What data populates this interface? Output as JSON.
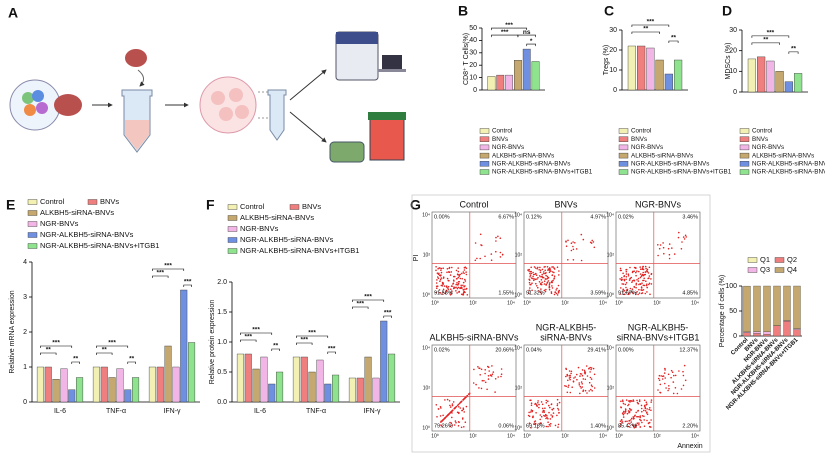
{
  "panels": [
    "A",
    "B",
    "C",
    "D",
    "E",
    "F",
    "G"
  ],
  "chart_data": [
    {
      "type": "bar",
      "ylabel": "CD8⁺ T Cells(%)",
      "ylim": [
        0,
        50
      ],
      "yticks": [
        0,
        10,
        20,
        30,
        40,
        50
      ],
      "series": [
        {
          "name": "Control",
          "color": "#f3f0b3",
          "values": [
            11
          ]
        },
        {
          "name": "BNVs",
          "color": "#ef7f7f",
          "values": [
            12
          ]
        },
        {
          "name": "NGR-BNVs",
          "color": "#f2b6e6",
          "values": [
            12
          ]
        },
        {
          "name": "ALKBH5-siRNA-BNVs",
          "color": "#c4a86f",
          "values": [
            24
          ]
        },
        {
          "name": "NGR-ALKBH5-siRNA-BNVs",
          "color": "#6f8fe0",
          "values": [
            33
          ]
        },
        {
          "name": "NGR-ALKBH5-siRNA-BNVs+ITGB1",
          "color": "#8fe38f",
          "values": [
            23
          ]
        }
      ],
      "annotations": [
        "***",
        "***",
        "ns",
        "*"
      ]
    },
    {
      "type": "bar",
      "ylabel": "Tregs (%)",
      "ylim": [
        0,
        30
      ],
      "yticks": [
        0,
        10,
        20,
        30
      ],
      "series": [
        {
          "name": "Control",
          "color": "#f3f0b3",
          "values": [
            22
          ]
        },
        {
          "name": "BNVs",
          "color": "#ef7f7f",
          "values": [
            22
          ]
        },
        {
          "name": "NGR-BNVs",
          "color": "#f2b6e6",
          "values": [
            21
          ]
        },
        {
          "name": "ALKBH5-siRNA-BNVs",
          "color": "#c4a86f",
          "values": [
            15
          ]
        },
        {
          "name": "NGR-ALKBH5-siRNA-BNVs",
          "color": "#6f8fe0",
          "values": [
            8
          ]
        },
        {
          "name": "NGR-ALKBH5-siRNA-BNVs+ITGB1",
          "color": "#8fe38f",
          "values": [
            15
          ]
        }
      ],
      "annotations": [
        "***",
        "**",
        "**"
      ]
    },
    {
      "type": "bar",
      "ylabel": "MDSCs (%)",
      "ylim": [
        0,
        30
      ],
      "yticks": [
        0,
        10,
        20,
        30
      ],
      "series": [
        {
          "name": "Control",
          "color": "#f3f0b3",
          "values": [
            16
          ]
        },
        {
          "name": "BNVs",
          "color": "#ef7f7f",
          "values": [
            17
          ]
        },
        {
          "name": "NGR-BNVs",
          "color": "#f2b6e6",
          "values": [
            15
          ]
        },
        {
          "name": "ALKBH5-siRNA-BNVs",
          "color": "#c4a86f",
          "values": [
            10
          ]
        },
        {
          "name": "NGR-ALKBH5-siRNA-BNVs",
          "color": "#6f8fe0",
          "values": [
            5
          ]
        },
        {
          "name": "NGR-ALKBH5-siRNA-BNVs+ITGB1",
          "color": "#8fe38f",
          "values": [
            9
          ]
        }
      ],
      "annotations": [
        "***",
        "**",
        "**"
      ]
    },
    {
      "type": "bar",
      "ylabel": "Relative mRNA expression",
      "ylim": [
        0,
        4
      ],
      "yticks": [
        0,
        1,
        2,
        3,
        4
      ],
      "categories": [
        "IL-6",
        "TNF-α",
        "IFN-γ"
      ],
      "series": [
        {
          "name": "Control",
          "color": "#f3f0b3",
          "values": [
            1.0,
            1.0,
            1.0
          ]
        },
        {
          "name": "BNVs",
          "color": "#ef7f7f",
          "values": [
            1.0,
            1.0,
            1.0
          ]
        },
        {
          "name": "ALKBH5-siRNA-BNVs",
          "color": "#c4a86f",
          "values": [
            0.65,
            0.7,
            1.6
          ]
        },
        {
          "name": "NGR-BNVs",
          "color": "#f2b6e6",
          "values": [
            0.95,
            0.95,
            1.0
          ]
        },
        {
          "name": "NGR-ALKBH5-siRNA-BNVs",
          "color": "#6f8fe0",
          "values": [
            0.35,
            0.35,
            3.2
          ]
        },
        {
          "name": "NGR-ALKBH5-siRNA-BNVs+ITGB1",
          "color": "#8fe38f",
          "values": [
            0.7,
            0.7,
            1.7
          ]
        }
      ],
      "annotations": [
        "***",
        "**",
        "**",
        "***",
        "**",
        "**",
        "***",
        "***",
        "***"
      ]
    },
    {
      "type": "bar",
      "ylabel": "Relative protein expression",
      "ylim": [
        0,
        2
      ],
      "yticks": [
        {
          "value": 0,
          "label": "0.0"
        },
        0.5,
        {
          "value": 1,
          "label": "1.0"
        },
        1.5,
        {
          "value": 2,
          "label": "2.0"
        }
      ],
      "categories": [
        "IL-6",
        "TNF-α",
        "IFN-γ"
      ],
      "series": [
        {
          "name": "Control",
          "color": "#f3f0b3",
          "values": [
            0.8,
            0.75,
            0.4
          ]
        },
        {
          "name": "BNVs",
          "color": "#ef7f7f",
          "values": [
            0.8,
            0.75,
            0.4
          ]
        },
        {
          "name": "ALKBH5-siRNA-BNVs",
          "color": "#c4a86f",
          "values": [
            0.55,
            0.5,
            0.75
          ]
        },
        {
          "name": "NGR-BNVs",
          "color": "#f2b6e6",
          "values": [
            0.75,
            0.7,
            0.4
          ]
        },
        {
          "name": "NGR-ALKBH5-siRNA-BNVs",
          "color": "#6f8fe0",
          "values": [
            0.3,
            0.3,
            1.35
          ]
        },
        {
          "name": "NGR-ALKBH5-siRNA-BNVs+ITGB1",
          "color": "#8fe38f",
          "values": [
            0.5,
            0.45,
            0.8
          ]
        }
      ],
      "annotations": [
        "***",
        "***",
        "**",
        "***",
        "***",
        "***",
        "***",
        "***",
        "***"
      ]
    },
    {
      "type": "stacked_bar",
      "ylabel": "Percentage of cells (%)",
      "ylim": [
        0,
        100
      ],
      "yticks": [
        0,
        50,
        100
      ],
      "categories": [
        "Control",
        "BNVs",
        "NGR-BNVs",
        "ALKBH5-siRNA-BNVs",
        "NGR-ALKBH5-siRNA-BNVs",
        "NGR-ALKBH5-siRNA-BNVs+ITGB1"
      ],
      "series": [
        {
          "name": "Q1",
          "color": "#f3f0b3",
          "values": [
            0.0,
            0.12,
            0.02,
            0.02,
            0.04,
            0.0
          ]
        },
        {
          "name": "Q2",
          "color": "#ef7f7f",
          "values": [
            6.67,
            4.97,
            3.46,
            20.66,
            29.41,
            12.37
          ]
        },
        {
          "name": "Q3",
          "color": "#f2b6e6",
          "values": [
            1.55,
            3.59,
            4.85,
            0.06,
            1.4,
            2.2
          ]
        },
        {
          "name": "Q4",
          "color": "#c4a86f",
          "values": [
            91.58,
            91.32,
            91.67,
            79.26,
            69.16,
            85.42
          ]
        }
      ]
    }
  ],
  "flow": {
    "ylabel": "PI",
    "xlabel": "Annexin",
    "ticks": [
      "10⁰",
      "10²",
      "10⁴"
    ],
    "plots": [
      {
        "title": [
          "Control"
        ],
        "q1": "0.00%",
        "q2": "6.67%",
        "q3": "1.55%",
        "q4": "91.58%"
      },
      {
        "title": [
          "BNVs"
        ],
        "q1": "0.12%",
        "q2": "4.97%",
        "q3": "3.59%",
        "q4": "91.32%"
      },
      {
        "title": [
          "NGR-BNVs"
        ],
        "q1": "0.02%",
        "q2": "3.46%",
        "q3": "4.85%",
        "q4": "91.67%"
      },
      {
        "title": [
          "ALKBH5-siRNA-BNVs"
        ],
        "q1": "0.02%",
        "q2": "20.66%",
        "q3": "0.06%",
        "q4": "79.26%"
      },
      {
        "title": [
          "NGR-ALKBH5-",
          "siRNA-BNVs"
        ],
        "q1": "0.04%",
        "q2": "29.41%",
        "q3": "1.40%",
        "q4": "69.16%"
      },
      {
        "title": [
          "NGR-ALKBH5-",
          "siRNA-BNVs+ITGB1"
        ],
        "q1": "0.00%",
        "q2": "12.37%",
        "q3": "2.20%",
        "q4": "85.42%"
      }
    ]
  }
}
